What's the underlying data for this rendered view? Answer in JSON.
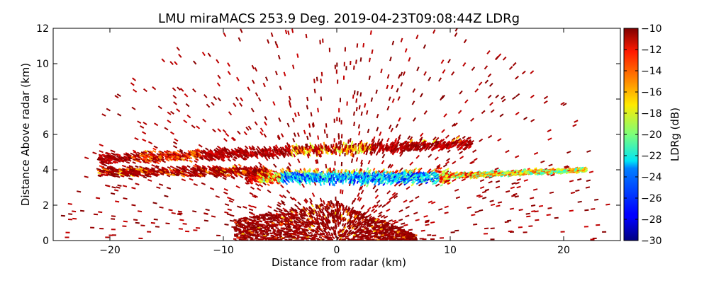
{
  "chart_data": {
    "type": "heatmap",
    "title": "LMU miraMACS 253.9 Deg. 2019-04-23T09:08:44Z  LDRg",
    "xlabel": "Distance from radar (km)",
    "ylabel": "Distance Above radar  (km)",
    "xlim": [
      -25,
      25
    ],
    "ylim": [
      0,
      12
    ],
    "x_ticks": [
      "−20",
      "−10",
      "0",
      "10",
      "20"
    ],
    "x_tick_values": [
      -20,
      -10,
      0,
      10,
      20
    ],
    "y_ticks": [
      "0",
      "2",
      "4",
      "6",
      "8",
      "10",
      "12"
    ],
    "y_tick_values": [
      0,
      2,
      4,
      6,
      8,
      10,
      12
    ],
    "colorbar": {
      "label": "LDRg (dB)",
      "range": [
        -30,
        -10
      ],
      "ticks": [
        "−10",
        "−12",
        "−14",
        "−16",
        "−18",
        "−20",
        "−22",
        "−24",
        "−26",
        "−28",
        "−30"
      ],
      "tick_values": [
        -10,
        -12,
        -14,
        -16,
        -18,
        -20,
        -22,
        -24,
        -26,
        -28,
        -30
      ],
      "colormap": "jet"
    },
    "features": [
      {
        "name": "near-ground",
        "x": [
          -9,
          7
        ],
        "y": [
          0,
          2
        ],
        "ldr": -10
      },
      {
        "name": "layer-5km",
        "x": [
          -21,
          12
        ],
        "y": [
          4.5,
          6.3
        ],
        "ldr": -13
      },
      {
        "name": "layer-3.5km",
        "x": [
          -6,
          22
        ],
        "y": [
          2.8,
          4.2
        ],
        "ldr": -22
      },
      {
        "name": "sparse-noise",
        "x": [
          -22,
          22
        ],
        "y": [
          0,
          12
        ],
        "ldr": -10
      }
    ]
  }
}
